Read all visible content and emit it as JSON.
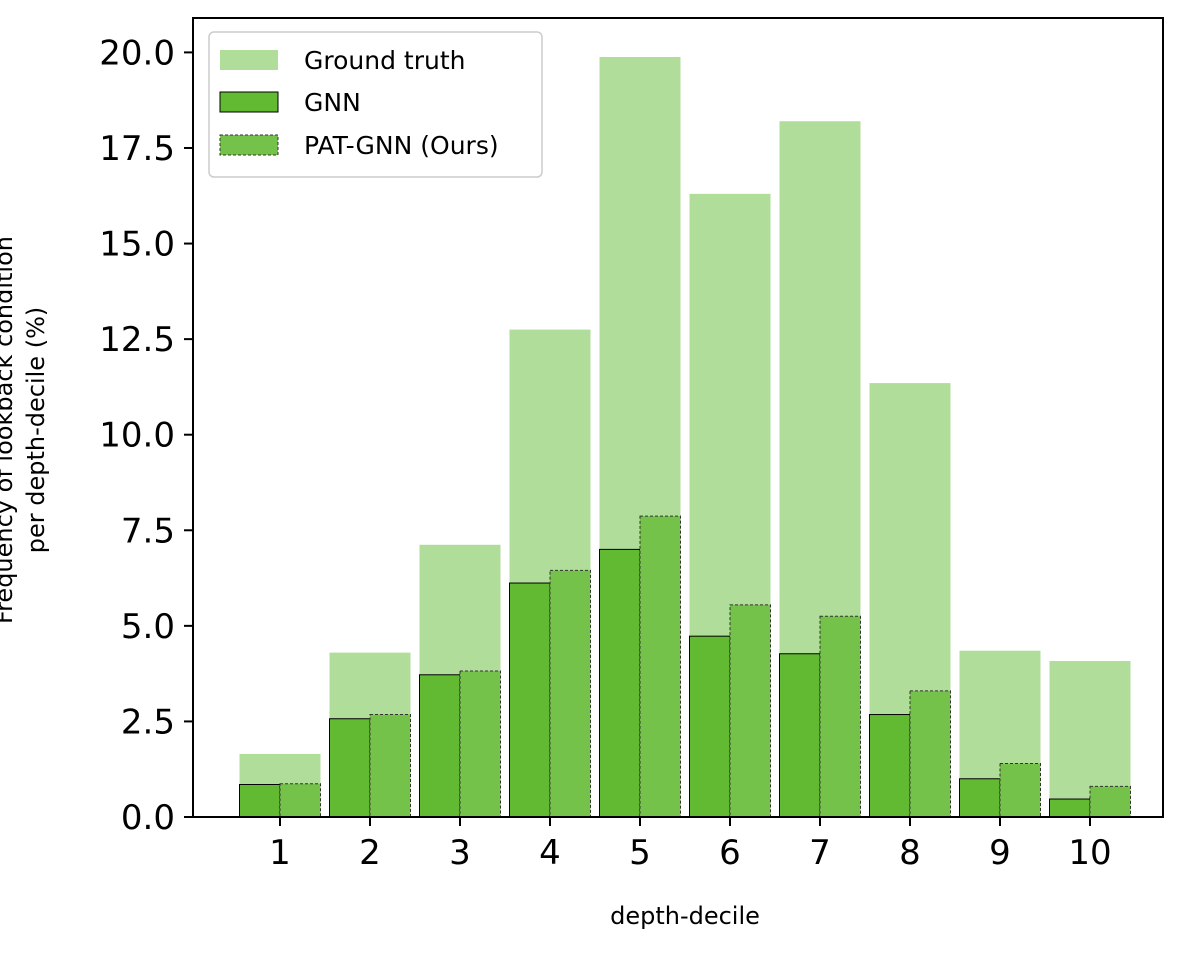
{
  "chart_data": {
    "type": "bar",
    "categories": [
      "1",
      "2",
      "3",
      "4",
      "5",
      "6",
      "7",
      "8",
      "9",
      "10"
    ],
    "series": [
      {
        "name": "Ground truth",
        "color": "#b0dd9a",
        "values": [
          1.65,
          4.3,
          7.12,
          12.75,
          19.88,
          16.3,
          18.2,
          11.35,
          4.35,
          4.08
        ]
      },
      {
        "name": "GNN",
        "color": "#62ba33",
        "values": [
          0.85,
          2.57,
          3.72,
          6.12,
          7.0,
          4.73,
          4.27,
          2.68,
          1.0,
          0.47
        ]
      },
      {
        "name": "PAT-GNN (Ours)",
        "color": "#74c24a",
        "values": [
          0.87,
          2.68,
          3.82,
          6.45,
          7.87,
          5.55,
          5.25,
          3.3,
          1.4,
          0.8
        ]
      }
    ],
    "xlabel": "depth-decile",
    "ylabel_lines": [
      "Frequency of lookback condition",
      "per depth-decile (%)"
    ],
    "ylim": [
      0,
      20.9
    ],
    "yticks": [
      "0.0",
      "2.5",
      "5.0",
      "7.5",
      "10.0",
      "12.5",
      "15.0",
      "17.5",
      "20.0"
    ],
    "ytick_values": [
      0,
      2.5,
      5,
      7.5,
      10,
      12.5,
      15,
      17.5,
      20
    ],
    "grid": false,
    "legend_position": "top-left"
  }
}
